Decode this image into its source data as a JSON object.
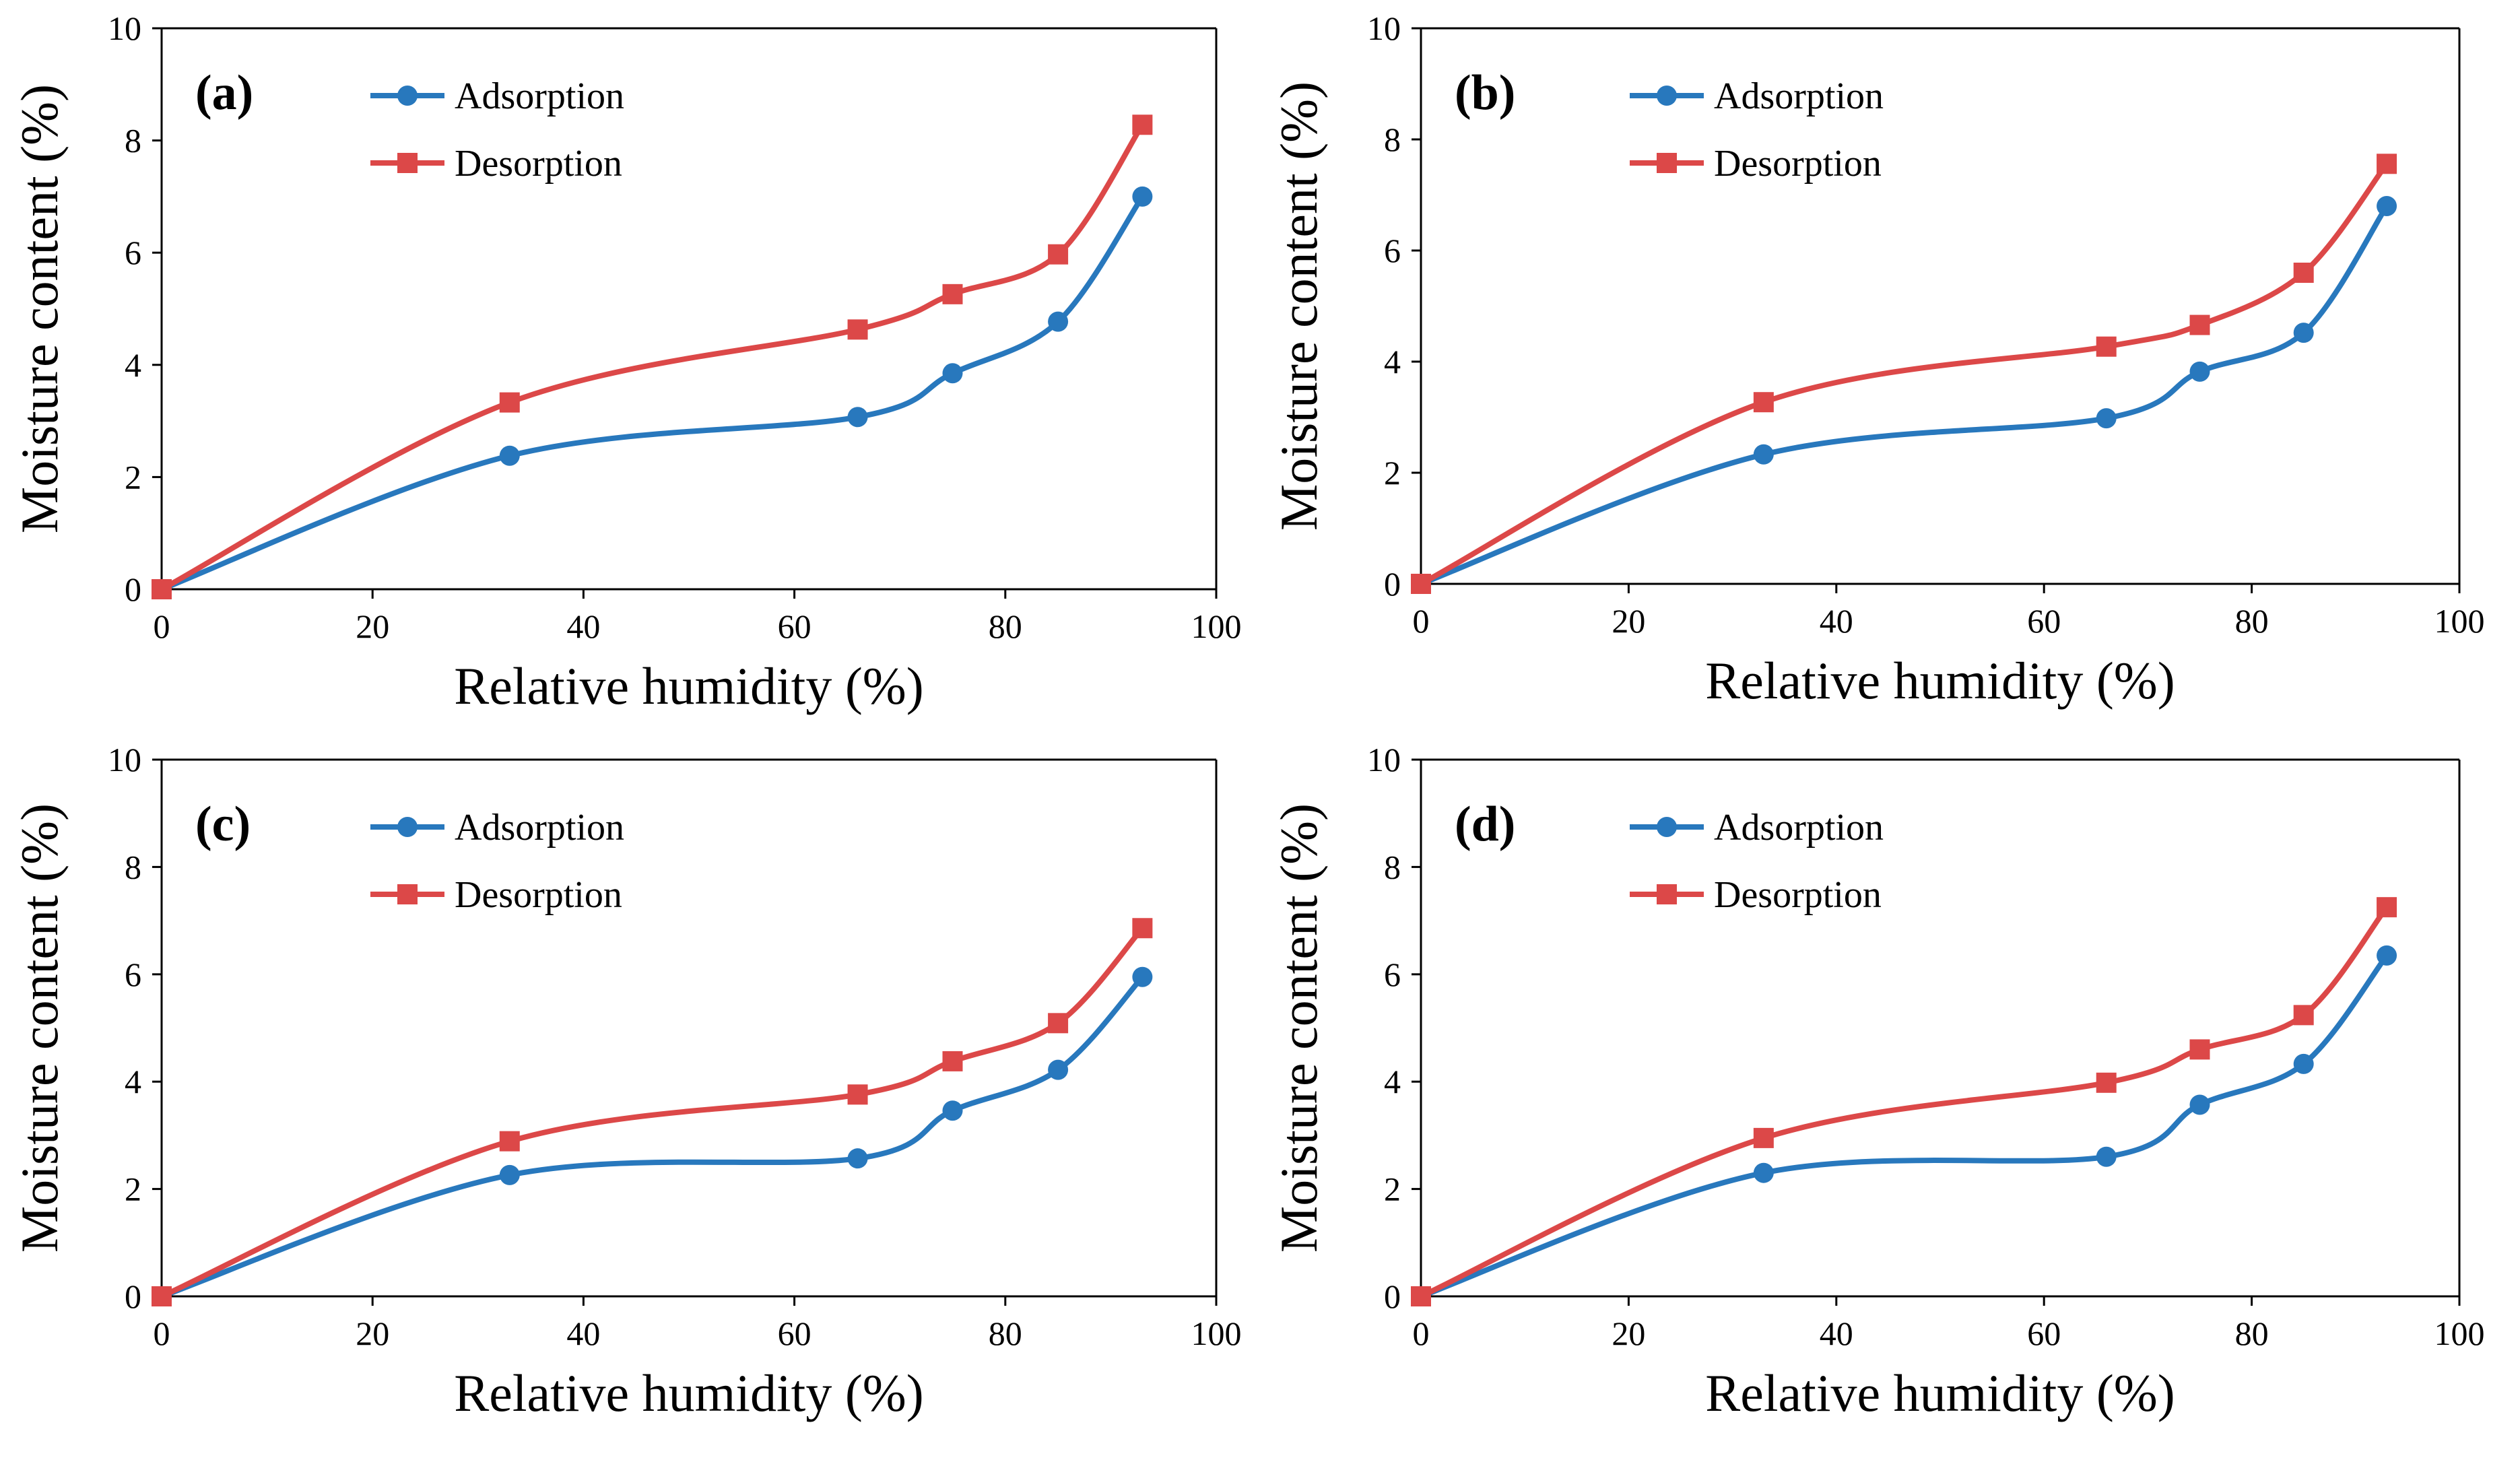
{
  "colors": {
    "adsorption": "#2878BD",
    "desorption": "#DC4848",
    "axis": "#000000"
  },
  "chart_data": [
    {
      "type": "line",
      "panel_label": "(a)",
      "xlabel": "Relative humidity (%)",
      "ylabel": "Moisture content (%)",
      "xlim": [
        0,
        100
      ],
      "ylim": [
        0,
        10
      ],
      "xticks": [
        "0",
        "20",
        "40",
        "60",
        "80",
        "100"
      ],
      "yticks": [
        "0",
        "2",
        "4",
        "6",
        "8",
        "10"
      ],
      "x": [
        0,
        33,
        66,
        75,
        85,
        93
      ],
      "series": [
        {
          "name": "Adsorption",
          "marker": "circle",
          "values": [
            0,
            2.38,
            3.07,
            3.85,
            4.77,
            7.0
          ]
        },
        {
          "name": "Desorption",
          "marker": "square",
          "values": [
            0,
            3.33,
            4.63,
            5.26,
            5.97,
            8.28
          ]
        }
      ]
    },
    {
      "type": "line",
      "panel_label": "(b)",
      "xlabel": "Relative humidity (%)",
      "ylabel": "Moisture content (%)",
      "xlim": [
        0,
        100
      ],
      "ylim": [
        0,
        10
      ],
      "xticks": [
        "0",
        "20",
        "40",
        "60",
        "80",
        "100"
      ],
      "yticks": [
        "0",
        "2",
        "4",
        "6",
        "8",
        "10"
      ],
      "x": [
        0,
        33,
        66,
        75,
        85,
        93
      ],
      "series": [
        {
          "name": "Adsorption",
          "marker": "circle",
          "values": [
            0,
            2.33,
            2.98,
            3.82,
            4.52,
            6.8
          ]
        },
        {
          "name": "Desorption",
          "marker": "square",
          "values": [
            0,
            3.27,
            4.27,
            4.66,
            5.6,
            7.56
          ]
        }
      ]
    },
    {
      "type": "line",
      "panel_label": "(c)",
      "xlabel": "Relative humidity (%)",
      "ylabel": "Moisture content (%)",
      "xlim": [
        0,
        100
      ],
      "ylim": [
        0,
        10
      ],
      "xticks": [
        "0",
        "20",
        "40",
        "60",
        "80",
        "100"
      ],
      "yticks": [
        "0",
        "2",
        "4",
        "6",
        "8",
        "10"
      ],
      "x": [
        0,
        33,
        66,
        75,
        85,
        93
      ],
      "series": [
        {
          "name": "Adsorption",
          "marker": "circle",
          "values": [
            0,
            2.26,
            2.57,
            3.46,
            4.22,
            5.95
          ]
        },
        {
          "name": "Desorption",
          "marker": "square",
          "values": [
            0,
            2.89,
            3.76,
            4.38,
            5.09,
            6.86
          ]
        }
      ]
    },
    {
      "type": "line",
      "panel_label": "(d)",
      "xlabel": "Relative humidity (%)",
      "ylabel": "Moisture content (%)",
      "xlim": [
        0,
        100
      ],
      "ylim": [
        0,
        10
      ],
      "xticks": [
        "0",
        "20",
        "40",
        "60",
        "80",
        "100"
      ],
      "yticks": [
        "0",
        "2",
        "4",
        "6",
        "8",
        "10"
      ],
      "x": [
        0,
        33,
        66,
        75,
        85,
        93
      ],
      "series": [
        {
          "name": "Adsorption",
          "marker": "circle",
          "values": [
            0,
            2.3,
            2.6,
            3.57,
            4.33,
            6.35
          ]
        },
        {
          "name": "Desorption",
          "marker": "square",
          "values": [
            0,
            2.95,
            3.98,
            4.6,
            5.24,
            7.25
          ]
        }
      ]
    }
  ]
}
